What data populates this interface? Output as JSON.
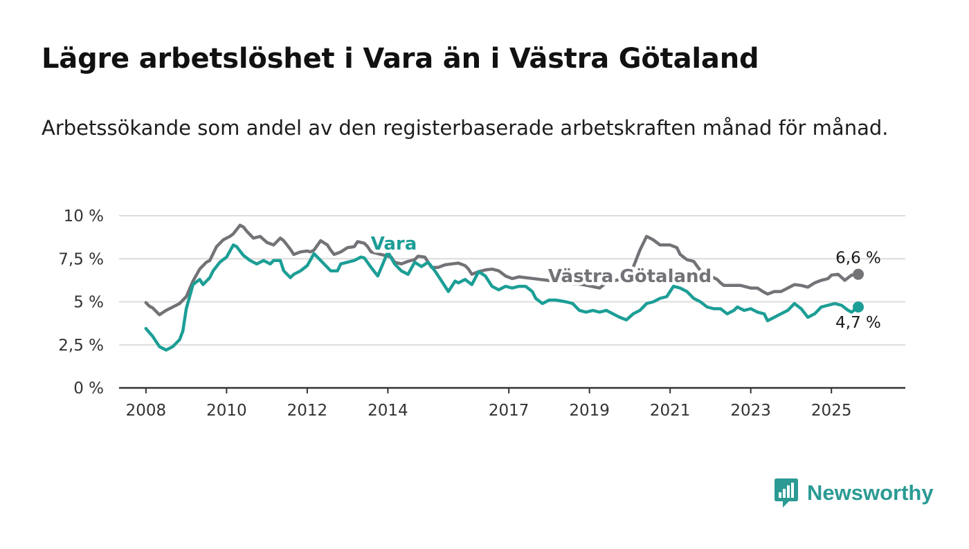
{
  "title": "Lägre arbetslöshet i Vara än i Västra Götaland",
  "subtitle": "Arbetssökande som andel av den registerbaserade arbetskraften månad för månad.",
  "logo": {
    "text": "Newsworthy",
    "icon": "bar-chart-speech-bubble-icon",
    "color": "#2b9a94"
  },
  "chart_data": {
    "type": "line",
    "title": "",
    "xlabel": "",
    "ylabel": "",
    "x_range": [
      "2007-05",
      "2026-11"
    ],
    "ylim": [
      0,
      10
    ],
    "y_ticks": [
      {
        "value": 0,
        "label": "0 %"
      },
      {
        "value": 2.5,
        "label": "2,5 %"
      },
      {
        "value": 5,
        "label": "5 %"
      },
      {
        "value": 7.5,
        "label": "7,5 %"
      },
      {
        "value": 10,
        "label": "10 %"
      }
    ],
    "x_ticks": [
      {
        "value": "2008-01",
        "label": "2008"
      },
      {
        "value": "2010-01",
        "label": "2010"
      },
      {
        "value": "2012-01",
        "label": "2012"
      },
      {
        "value": "2014-01",
        "label": "2014"
      },
      {
        "value": "2017-01",
        "label": "2017"
      },
      {
        "value": "2019-01",
        "label": "2019"
      },
      {
        "value": "2021-01",
        "label": "2021"
      },
      {
        "value": "2023-01",
        "label": "2023"
      },
      {
        "value": "2025-01",
        "label": "2025"
      }
    ],
    "grid": true,
    "legend": "none",
    "series": [
      {
        "name": "Västra Götaland",
        "color": "#727277",
        "end_label": "6,6 %",
        "points": [
          [
            "2008-01",
            4.95
          ],
          [
            "2008-02",
            4.75
          ],
          [
            "2008-03",
            4.65
          ],
          [
            "2008-04",
            4.45
          ],
          [
            "2008-05",
            4.25
          ],
          [
            "2008-07",
            4.5
          ],
          [
            "2008-09",
            4.7
          ],
          [
            "2008-11",
            4.9
          ],
          [
            "2009-01",
            5.3
          ],
          [
            "2009-03",
            6.2
          ],
          [
            "2009-05",
            6.9
          ],
          [
            "2009-07",
            7.3
          ],
          [
            "2009-08",
            7.4
          ],
          [
            "2009-10",
            8.2
          ],
          [
            "2009-12",
            8.6
          ],
          [
            "2010-02",
            8.8
          ],
          [
            "2010-03",
            8.95
          ],
          [
            "2010-05",
            9.45
          ],
          [
            "2010-06",
            9.35
          ],
          [
            "2010-07",
            9.1
          ],
          [
            "2010-09",
            8.7
          ],
          [
            "2010-11",
            8.8
          ],
          [
            "2011-01",
            8.45
          ],
          [
            "2011-03",
            8.3
          ],
          [
            "2011-05",
            8.7
          ],
          [
            "2011-06",
            8.55
          ],
          [
            "2011-08",
            8.05
          ],
          [
            "2011-09",
            7.75
          ],
          [
            "2011-11",
            7.9
          ],
          [
            "2012-01",
            7.95
          ],
          [
            "2012-02",
            7.9
          ],
          [
            "2012-03",
            8.0
          ],
          [
            "2012-05",
            8.55
          ],
          [
            "2012-07",
            8.3
          ],
          [
            "2012-08",
            8.0
          ],
          [
            "2012-09",
            7.75
          ],
          [
            "2012-11",
            7.9
          ],
          [
            "2013-01",
            8.15
          ],
          [
            "2013-03",
            8.2
          ],
          [
            "2013-04",
            8.5
          ],
          [
            "2013-06",
            8.4
          ],
          [
            "2013-07",
            8.2
          ],
          [
            "2013-08",
            7.9
          ],
          [
            "2014-02",
            7.6
          ],
          [
            "2014-03",
            7.3
          ],
          [
            "2014-05",
            7.2
          ],
          [
            "2014-07",
            7.35
          ],
          [
            "2014-09",
            7.45
          ],
          [
            "2014-10",
            7.65
          ],
          [
            "2014-12",
            7.6
          ],
          [
            "2015-01",
            7.3
          ],
          [
            "2015-02",
            7.0
          ],
          [
            "2015-04",
            7.0
          ],
          [
            "2015-06",
            7.15
          ],
          [
            "2015-08",
            7.2
          ],
          [
            "2015-10",
            7.25
          ],
          [
            "2015-12",
            7.1
          ],
          [
            "2016-01",
            6.9
          ],
          [
            "2016-02",
            6.6
          ],
          [
            "2016-04",
            6.75
          ],
          [
            "2016-06",
            6.85
          ],
          [
            "2016-08",
            6.9
          ],
          [
            "2016-10",
            6.8
          ],
          [
            "2016-12",
            6.5
          ],
          [
            "2017-02",
            6.35
          ],
          [
            "2017-04",
            6.45
          ],
          [
            "2018-11",
            6.0
          ],
          [
            "2019-04",
            5.8
          ],
          [
            "2019-06",
            6.1
          ],
          [
            "2019-12",
            6.4
          ],
          [
            "2020-02",
            7.0
          ],
          [
            "2020-04",
            8.0
          ],
          [
            "2020-06",
            8.8
          ],
          [
            "2020-08",
            8.6
          ],
          [
            "2020-10",
            8.3
          ],
          [
            "2020-11",
            8.3
          ],
          [
            "2021-01",
            8.3
          ],
          [
            "2021-03",
            8.15
          ],
          [
            "2021-04",
            7.75
          ],
          [
            "2021-06",
            7.45
          ],
          [
            "2021-08",
            7.35
          ],
          [
            "2021-11",
            6.55
          ],
          [
            "2022-01",
            6.5
          ],
          [
            "2022-03",
            6.3
          ],
          [
            "2022-04",
            6.1
          ],
          [
            "2022-05",
            5.95
          ],
          [
            "2022-07",
            5.95
          ],
          [
            "2022-10",
            5.95
          ],
          [
            "2022-12",
            5.85
          ],
          [
            "2023-01",
            5.8
          ],
          [
            "2023-03",
            5.8
          ],
          [
            "2023-05",
            5.55
          ],
          [
            "2023-06",
            5.45
          ],
          [
            "2023-08",
            5.6
          ],
          [
            "2023-10",
            5.6
          ],
          [
            "2023-12",
            5.8
          ],
          [
            "2024-02",
            6.0
          ],
          [
            "2024-04",
            5.95
          ],
          [
            "2024-06",
            5.85
          ],
          [
            "2024-08",
            6.1
          ],
          [
            "2024-10",
            6.25
          ],
          [
            "2024-12",
            6.35
          ],
          [
            "2025-01",
            6.55
          ],
          [
            "2025-03",
            6.6
          ],
          [
            "2025-05",
            6.25
          ],
          [
            "2025-07",
            6.55
          ],
          [
            "2025-09",
            6.6
          ]
        ]
      },
      {
        "name": "Vara",
        "color": "#1c9e96",
        "end_label": "4,7 %",
        "points": [
          [
            "2008-01",
            3.45
          ],
          [
            "2008-03",
            3.0
          ],
          [
            "2008-05",
            2.4
          ],
          [
            "2008-07",
            2.2
          ],
          [
            "2008-09",
            2.4
          ],
          [
            "2008-11",
            2.8
          ],
          [
            "2008-12",
            3.3
          ],
          [
            "2009-01",
            4.6
          ],
          [
            "2009-03",
            6.0
          ],
          [
            "2009-05",
            6.3
          ],
          [
            "2009-06",
            6.0
          ],
          [
            "2009-08",
            6.4
          ],
          [
            "2009-09",
            6.8
          ],
          [
            "2009-11",
            7.3
          ],
          [
            "2010-01",
            7.6
          ],
          [
            "2010-03",
            8.3
          ],
          [
            "2010-04",
            8.2
          ],
          [
            "2010-06",
            7.7
          ],
          [
            "2010-08",
            7.4
          ],
          [
            "2010-10",
            7.2
          ],
          [
            "2010-12",
            7.4
          ],
          [
            "2011-02",
            7.2
          ],
          [
            "2011-03",
            7.4
          ],
          [
            "2011-05",
            7.4
          ],
          [
            "2011-06",
            6.8
          ],
          [
            "2011-08",
            6.4
          ],
          [
            "2011-09",
            6.6
          ],
          [
            "2011-11",
            6.8
          ],
          [
            "2012-01",
            7.1
          ],
          [
            "2012-03",
            7.8
          ],
          [
            "2012-05",
            7.4
          ],
          [
            "2012-07",
            7.0
          ],
          [
            "2012-08",
            6.8
          ],
          [
            "2012-10",
            6.8
          ],
          [
            "2012-11",
            7.2
          ],
          [
            "2013-01",
            7.3
          ],
          [
            "2013-03",
            7.4
          ],
          [
            "2013-05",
            7.6
          ],
          [
            "2013-06",
            7.55
          ],
          [
            "2013-08",
            7.0
          ],
          [
            "2013-10",
            6.5
          ],
          [
            "2014-01",
            7.9
          ],
          [
            "2014-03",
            7.2
          ],
          [
            "2014-05",
            6.8
          ],
          [
            "2014-07",
            6.6
          ],
          [
            "2014-09",
            7.3
          ],
          [
            "2014-11",
            7.05
          ],
          [
            "2015-01",
            7.3
          ],
          [
            "2015-03",
            6.8
          ],
          [
            "2015-05",
            6.2
          ],
          [
            "2015-07",
            5.6
          ],
          [
            "2015-09",
            6.2
          ],
          [
            "2015-10",
            6.1
          ],
          [
            "2015-12",
            6.3
          ],
          [
            "2016-02",
            6.0
          ],
          [
            "2016-04",
            6.75
          ],
          [
            "2016-06",
            6.5
          ],
          [
            "2016-08",
            5.9
          ],
          [
            "2016-10",
            5.7
          ],
          [
            "2016-12",
            5.9
          ],
          [
            "2017-02",
            5.8
          ],
          [
            "2017-04",
            5.9
          ],
          [
            "2017-06",
            5.9
          ],
          [
            "2017-08",
            5.6
          ],
          [
            "2017-09",
            5.2
          ],
          [
            "2017-11",
            4.9
          ],
          [
            "2018-01",
            5.1
          ],
          [
            "2018-03",
            5.1
          ],
          [
            "2018-06",
            5.0
          ],
          [
            "2018-08",
            4.9
          ],
          [
            "2018-10",
            4.5
          ],
          [
            "2018-12",
            4.4
          ],
          [
            "2019-02",
            4.5
          ],
          [
            "2019-04",
            4.4
          ],
          [
            "2019-06",
            4.5
          ],
          [
            "2019-08",
            4.3
          ],
          [
            "2019-10",
            4.1
          ],
          [
            "2019-12",
            3.95
          ],
          [
            "2020-02",
            4.3
          ],
          [
            "2020-04",
            4.5
          ],
          [
            "2020-06",
            4.9
          ],
          [
            "2020-08",
            5.0
          ],
          [
            "2020-10",
            5.2
          ],
          [
            "2020-12",
            5.3
          ],
          [
            "2021-02",
            5.9
          ],
          [
            "2021-04",
            5.8
          ],
          [
            "2021-06",
            5.6
          ],
          [
            "2021-08",
            5.2
          ],
          [
            "2021-10",
            5.0
          ],
          [
            "2021-12",
            4.7
          ],
          [
            "2022-02",
            4.6
          ],
          [
            "2022-04",
            4.6
          ],
          [
            "2022-06",
            4.3
          ],
          [
            "2022-08",
            4.5
          ],
          [
            "2022-09",
            4.7
          ],
          [
            "2022-11",
            4.5
          ],
          [
            "2023-01",
            4.6
          ],
          [
            "2023-03",
            4.4
          ],
          [
            "2023-05",
            4.3
          ],
          [
            "2023-06",
            3.9
          ],
          [
            "2023-08",
            4.1
          ],
          [
            "2023-10",
            4.3
          ],
          [
            "2023-12",
            4.5
          ],
          [
            "2024-02",
            4.9
          ],
          [
            "2024-04",
            4.6
          ],
          [
            "2024-06",
            4.1
          ],
          [
            "2024-08",
            4.3
          ],
          [
            "2024-10",
            4.7
          ],
          [
            "2024-12",
            4.8
          ],
          [
            "2025-02",
            4.9
          ],
          [
            "2025-04",
            4.8
          ],
          [
            "2025-06",
            4.5
          ],
          [
            "2025-07",
            4.4
          ],
          [
            "2025-09",
            4.7
          ]
        ]
      }
    ]
  }
}
